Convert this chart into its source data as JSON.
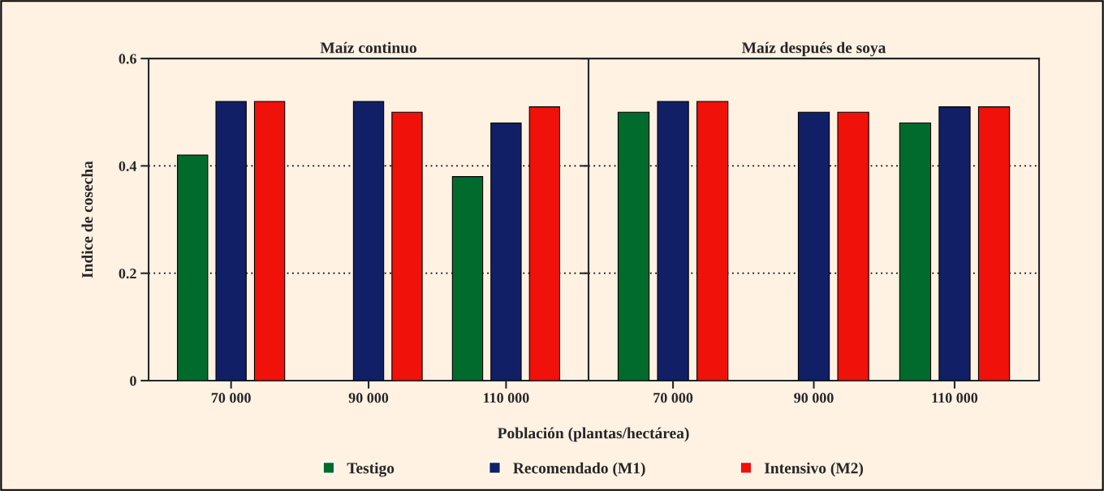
{
  "chart_data": [
    {
      "type": "bar",
      "title": "Maíz continuo",
      "ylabel": "Indice de cosecha",
      "xlabel": "Población (plantas/hectárea)",
      "categories": [
        "70 000",
        "90 000",
        "110 000"
      ],
      "series": [
        {
          "name": "Testigo",
          "color": "#006b2d",
          "values": [
            0.42,
            null,
            0.38
          ]
        },
        {
          "name": "Recomendado (M1)",
          "color": "#111f66",
          "values": [
            0.52,
            0.52,
            0.48
          ]
        },
        {
          "name": "Intensivo (M2)",
          "color": "#ef110a",
          "values": [
            0.52,
            0.5,
            0.51
          ]
        }
      ],
      "ylim": [
        0,
        0.6
      ],
      "yticks": [
        0,
        0.2,
        0.4,
        0.6
      ],
      "grid": "y",
      "legend": "bottom"
    },
    {
      "type": "bar",
      "title": "Maíz después de soya",
      "categories": [
        "70 000",
        "90 000",
        "110 000"
      ],
      "series": [
        {
          "color": "#006b2d",
          "values": [
            0.5,
            null,
            0.48
          ]
        },
        {
          "color": "#111f66",
          "values": [
            0.52,
            0.5,
            0.51
          ]
        },
        {
          "color": "#ef110a",
          "values": [
            0.52,
            0.5,
            0.51
          ]
        }
      ],
      "ylim": [
        0,
        0.6
      ],
      "yticks": [
        0,
        0.2,
        0.4,
        0.6
      ],
      "grid": "y",
      "tick_labels": "x"
    }
  ]
}
